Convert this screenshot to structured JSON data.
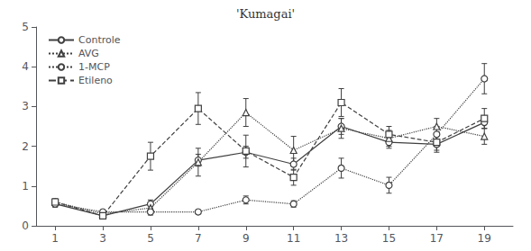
{
  "chart_data": {
    "type": "line",
    "title": "'Kumagai'",
    "x": [
      1,
      3,
      5,
      7,
      9,
      11,
      13,
      15,
      17,
      19
    ],
    "xlim": [
      0.2,
      20.2
    ],
    "xticks": [
      1,
      3,
      5,
      7,
      9,
      11,
      13,
      15,
      17,
      19
    ],
    "ylim": [
      0,
      5
    ],
    "yticks": [
      0,
      1,
      2,
      3,
      4,
      5
    ],
    "grid": false,
    "legend": "upper left",
    "color": "#404040",
    "series": [
      {
        "name": "Controle",
        "marker": "circle",
        "line_style": "solid",
        "values": [
          0.55,
          0.25,
          0.55,
          1.65,
          1.85,
          1.55,
          2.5,
          2.1,
          2.05,
          2.6
        ],
        "errors": [
          0.08,
          0.05,
          0.1,
          0.15,
          0.15,
          0.15,
          0.2,
          0.15,
          0.2,
          0.15
        ]
      },
      {
        "name": "AVG",
        "marker": "triangle",
        "line_style": "dotted",
        "values": [
          0.6,
          0.3,
          0.45,
          1.6,
          2.85,
          1.9,
          2.45,
          2.2,
          2.5,
          2.25
        ],
        "errors": [
          0.08,
          0.05,
          0.1,
          0.35,
          0.35,
          0.35,
          0.25,
          0.2,
          0.2,
          0.2
        ]
      },
      {
        "name": "1-MCP",
        "marker": "circle",
        "line_style": "dotted",
        "values": [
          0.55,
          0.35,
          0.35,
          0.35,
          0.65,
          0.55,
          1.45,
          1.02,
          2.3,
          3.7
        ],
        "errors": [
          0.07,
          0.05,
          0.08,
          0.05,
          0.1,
          0.08,
          0.25,
          0.2,
          0.2,
          0.38
        ]
      },
      {
        "name": "Etileno",
        "marker": "square",
        "line_style": "dashed",
        "values": [
          0.6,
          0.25,
          1.75,
          2.95,
          1.88,
          1.22,
          3.1,
          2.3,
          2.1,
          2.7
        ],
        "errors": [
          0.08,
          0.05,
          0.35,
          0.4,
          0.4,
          0.2,
          0.35,
          0.2,
          0.2,
          0.25
        ]
      }
    ]
  }
}
